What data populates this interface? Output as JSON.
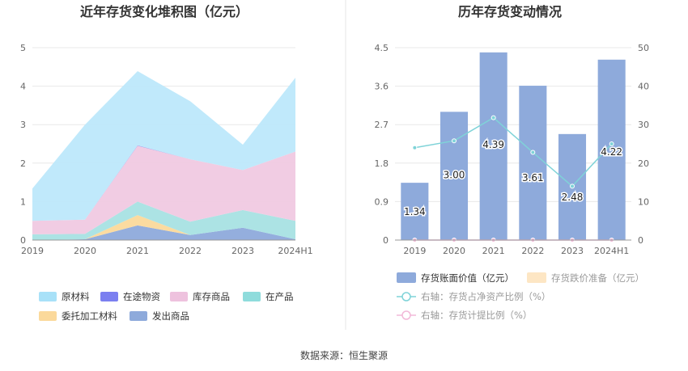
{
  "left_title": "近年存货变化堆积图（亿元）",
  "right_title": "历年存货变动情况",
  "source_label": "数据来源：",
  "source_name": "恒生聚源",
  "chart_data": [
    {
      "type": "area",
      "stacked": true,
      "title": "近年存货变化堆积图（亿元）",
      "categories": [
        "2019",
        "2020",
        "2021",
        "2022",
        "2023",
        "2024H1"
      ],
      "ylim": [
        0,
        5
      ],
      "yticks": [
        "0",
        "1",
        "2",
        "3",
        "4",
        "5"
      ],
      "legend_position": "bottom",
      "series": [
        {
          "name": "发出商品",
          "color": "#8eaadb",
          "values": [
            0.0,
            0.02,
            0.38,
            0.13,
            0.32,
            0.02
          ]
        },
        {
          "name": "委托加工材料",
          "color": "#fbd99b",
          "values": [
            0.0,
            0.0,
            0.27,
            0.0,
            0.0,
            0.0
          ]
        },
        {
          "name": "在产品",
          "color": "#a8e2e3",
          "values": [
            0.15,
            0.14,
            0.35,
            0.35,
            0.46,
            0.48
          ]
        },
        {
          "name": "库存商品",
          "color": "#f0c9e2",
          "values": [
            0.35,
            0.37,
            1.45,
            1.62,
            1.04,
            1.8
          ]
        },
        {
          "name": "在途物资",
          "color": "#7f7fea",
          "values": [
            0.0,
            0.0,
            0.01,
            0.0,
            0.0,
            0.0
          ]
        },
        {
          "name": "原材料",
          "color": "#bde8fb",
          "values": [
            0.84,
            2.47,
            1.93,
            1.51,
            0.66,
            1.92
          ]
        }
      ],
      "legend": [
        {
          "name": "原材料",
          "color": "#a8e1f8"
        },
        {
          "name": "在途物资",
          "color": "#7b7ff0"
        },
        {
          "name": "库存商品",
          "color": "#eec2de"
        },
        {
          "name": "在产品",
          "color": "#8fdcdc"
        },
        {
          "name": "委托加工材料",
          "color": "#fbd99b"
        },
        {
          "name": "发出商品",
          "color": "#8eaadb"
        }
      ]
    },
    {
      "type": "bar+line",
      "title": "历年存货变动情况",
      "categories": [
        "2019",
        "2020",
        "2021",
        "2022",
        "2023",
        "2024H1"
      ],
      "ylim_left": [
        0,
        4.5
      ],
      "yticks_left": [
        "0",
        "0.9",
        "1.8",
        "2.7",
        "3.6",
        "4.5"
      ],
      "ylim_right": [
        0,
        50
      ],
      "yticks_right": [
        "0",
        "10",
        "20",
        "30",
        "40",
        "50"
      ],
      "legend_position": "bottom",
      "bars": {
        "name": "存货账面价值（亿元）",
        "color": "#8eaadb",
        "values": [
          1.34,
          3.0,
          4.39,
          3.61,
          2.48,
          4.22
        ],
        "labels": [
          "1.34",
          "3.00",
          "4.39",
          "3.61",
          "2.48",
          "4.22"
        ]
      },
      "bars2": {
        "name": "存货跌价准备（亿元）",
        "color": "#fde6c4",
        "values": [
          0,
          0,
          0,
          0,
          0,
          0
        ]
      },
      "lines": [
        {
          "name": "右轴：存货占净资产比例（%）",
          "color": "#7fd3d8",
          "values": [
            24.0,
            25.8,
            31.8,
            22.8,
            14.0,
            25.0
          ]
        },
        {
          "name": "右轴：存货计提比例（%）",
          "color": "#f2b8d8",
          "values": [
            0,
            0,
            0,
            0,
            0,
            0
          ]
        }
      ]
    }
  ]
}
